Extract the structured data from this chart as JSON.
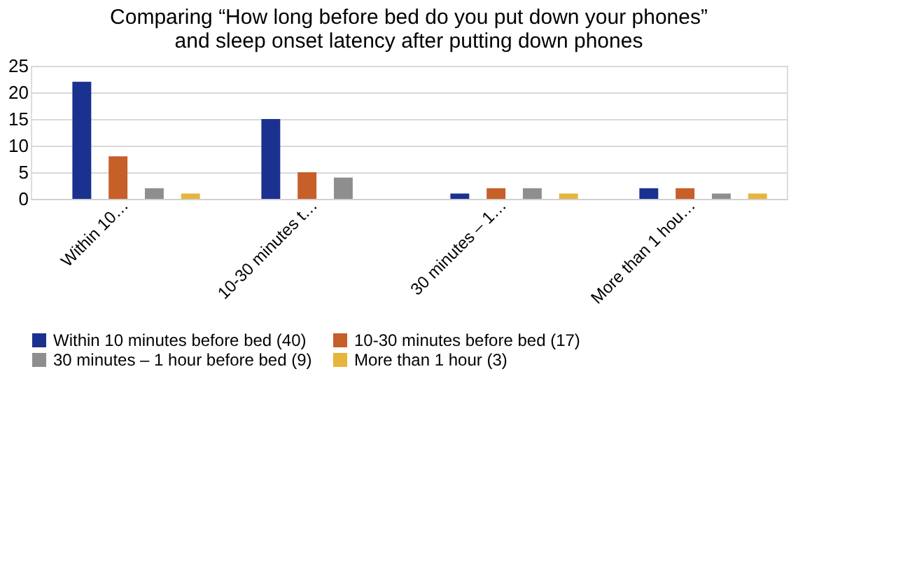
{
  "chart_data": {
    "type": "bar",
    "title": "Comparing “How long before bed do you put down your phones” and sleep onset latency after putting down phones",
    "categories": [
      "Within 10…",
      "10-30 minutes t…",
      "30 minutes – 1…",
      "More than 1 hou…"
    ],
    "series": [
      {
        "name": "Within 10 minutes before bed (40)",
        "color": "#1a318f",
        "values": [
          22,
          15,
          1,
          2
        ]
      },
      {
        "name": "10-30 minutes before bed (17)",
        "color": "#c65f28",
        "values": [
          8,
          5,
          2,
          2
        ]
      },
      {
        "name": "30 minutes – 1 hour before bed (9)",
        "color": "#8e8e8e",
        "values": [
          2,
          4,
          2,
          1
        ]
      },
      {
        "name": "More than 1 hour (3)",
        "color": "#e6b53c",
        "values": [
          1,
          0,
          1,
          1
        ]
      }
    ],
    "ylim": [
      0,
      25
    ],
    "yticks": [
      0,
      5,
      10,
      15,
      20,
      25
    ],
    "grid": "y",
    "legend": "bottom"
  }
}
